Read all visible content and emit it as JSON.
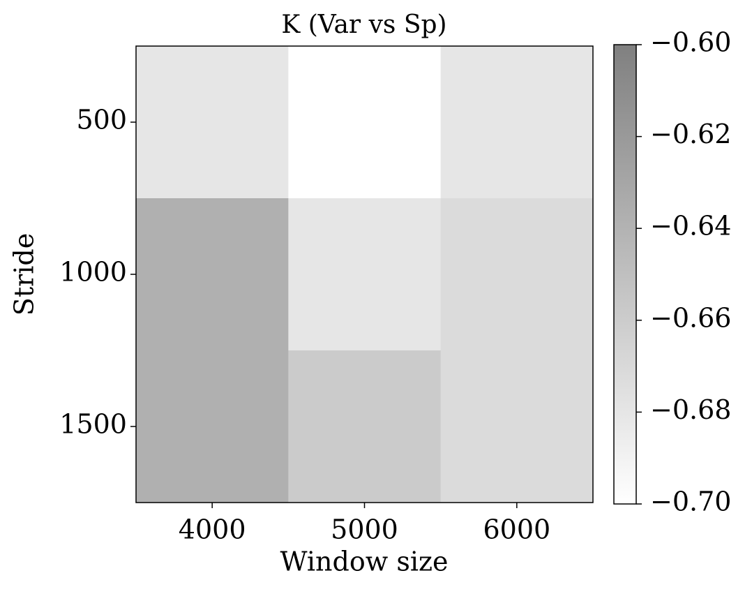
{
  "chart_data": {
    "type": "heatmap",
    "title": "K (Var vs Sp)",
    "x_label": "Window size",
    "y_label": "Stride",
    "categories": [
      "4000",
      "5000",
      "6000"
    ],
    "y_categories": [
      "500",
      "1000",
      "1500"
    ],
    "values": [
      [
        -0.68,
        -0.7,
        -0.68
      ],
      [
        -0.638,
        -0.68,
        -0.672
      ],
      [
        -0.638,
        -0.659,
        -0.672
      ]
    ],
    "colormap": [
      "#ffffff",
      "#808080"
    ],
    "zlim": [
      -0.7,
      -0.6
    ],
    "zticks": [
      {
        "value": -0.6,
        "label": "−0.60"
      },
      {
        "value": -0.62,
        "label": "−0.62"
      },
      {
        "value": -0.64,
        "label": "−0.64"
      },
      {
        "value": -0.66,
        "label": "−0.66"
      },
      {
        "value": -0.68,
        "label": "−0.68"
      },
      {
        "value": -0.7,
        "label": "−0.70"
      }
    ]
  }
}
